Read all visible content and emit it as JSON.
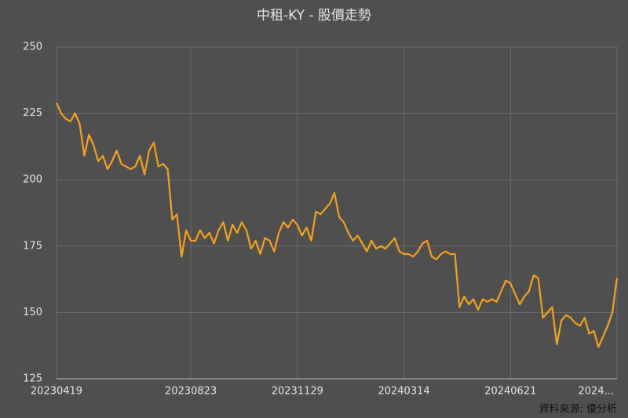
{
  "chart_data": {
    "type": "line",
    "title": "中租-KY - 股價走勢",
    "source": "資料來源: 優分析",
    "categories": [
      "20230419",
      null,
      null,
      null,
      null,
      null,
      null,
      null,
      null,
      null,
      null,
      null,
      null,
      null,
      null,
      null,
      null,
      null,
      null,
      null,
      null,
      null,
      null,
      null,
      null,
      null,
      null,
      null,
      null,
      "20230823",
      null,
      null,
      null,
      null,
      null,
      null,
      null,
      null,
      null,
      null,
      null,
      null,
      null,
      null,
      null,
      null,
      null,
      null,
      null,
      null,
      null,
      null,
      "20231129",
      null,
      null,
      null,
      null,
      null,
      null,
      null,
      null,
      null,
      null,
      null,
      null,
      null,
      null,
      null,
      null,
      null,
      null,
      null,
      null,
      null,
      null,
      "20240314",
      null,
      null,
      null,
      null,
      null,
      null,
      null,
      null,
      null,
      null,
      null,
      null,
      null,
      null,
      null,
      null,
      null,
      null,
      null,
      null,
      null,
      null,
      "20240621",
      null,
      null,
      null,
      null,
      null,
      null,
      null,
      null,
      null,
      null,
      null,
      null,
      null,
      null,
      null,
      null,
      null,
      null,
      null,
      null,
      null,
      null,
      "2024..."
    ],
    "series": [
      {
        "name": "股價",
        "color": "#f5a21c",
        "values": [
          229,
          225,
          223,
          222,
          225,
          221,
          209,
          217,
          213,
          207,
          209,
          204,
          207,
          211,
          206,
          205,
          204,
          205,
          209,
          202,
          211,
          214,
          205,
          206,
          204,
          185,
          187,
          171,
          181,
          177,
          177,
          181,
          178,
          180,
          176,
          181,
          184,
          177,
          183,
          180,
          184,
          181,
          174,
          177,
          172,
          178,
          177,
          173,
          180,
          184,
          182,
          185,
          183,
          179,
          182,
          177,
          188,
          187,
          189,
          191,
          195,
          186,
          184,
          180,
          177,
          179,
          176,
          173,
          177,
          174,
          175,
          174,
          176,
          178,
          173,
          172,
          172,
          171,
          173,
          176,
          177,
          171,
          170,
          172,
          173,
          172,
          172,
          152,
          156,
          153,
          155,
          151,
          155,
          154,
          155,
          154,
          158,
          162,
          161,
          157,
          153,
          156,
          158,
          164,
          163,
          148,
          150,
          152,
          138,
          147,
          149,
          148,
          146,
          145,
          148,
          142,
          143,
          137,
          141,
          145,
          150,
          163
        ]
      }
    ],
    "ylim": [
      125,
      250
    ],
    "yticks": [
      125,
      150,
      175,
      200,
      225,
      250
    ],
    "grid": true
  }
}
